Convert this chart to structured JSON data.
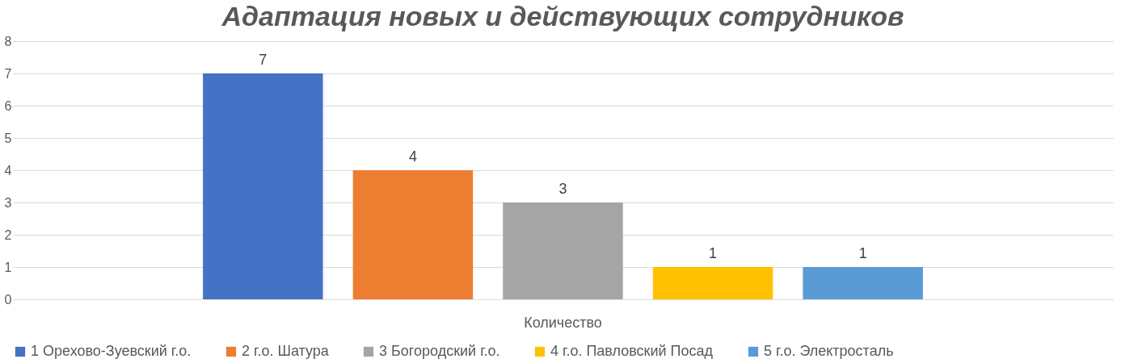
{
  "chart_data": {
    "type": "bar",
    "title": "Адаптация новых и действующих сотрудников",
    "categories": [
      "Количество"
    ],
    "series": [
      {
        "name": "1 Орехово-Зуевский г.о.",
        "color": "#4472c4",
        "values": [
          7
        ]
      },
      {
        "name": "2 г.о. Шатура",
        "color": "#ed7d31",
        "values": [
          4
        ]
      },
      {
        "name": "3 Богородский г.о.",
        "color": "#a5a5a5",
        "values": [
          3
        ]
      },
      {
        "name": "4 г.о. Павловский Посад",
        "color": "#ffc000",
        "values": [
          1
        ]
      },
      {
        "name": "5 г.о. Электросталь",
        "color": "#5b9bd5",
        "values": [
          1
        ]
      }
    ],
    "ylim": [
      0,
      8
    ],
    "yticks": [
      0,
      1,
      2,
      3,
      4,
      5,
      6,
      7,
      8
    ],
    "grid": "y",
    "legend": "bottom",
    "data_labels": true
  }
}
